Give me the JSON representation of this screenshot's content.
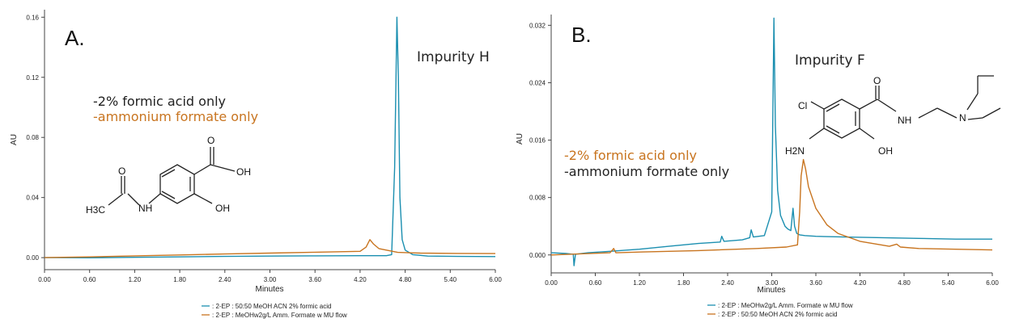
{
  "colors": {
    "teal": "#1b8fb0",
    "orange": "#c8741f",
    "axis": "#444444",
    "text": "#222222"
  },
  "chart_data": [
    {
      "type": "line",
      "panel_label": "A.",
      "compound_label": "Impurity H",
      "xlabel": "Minutes",
      "ylabel": "AU",
      "xlim": [
        0,
        6
      ],
      "ylim": [
        -0.008,
        0.165
      ],
      "xticks": [
        "0.00",
        "0.60",
        "1.20",
        "1.80",
        "2.40",
        "3.00",
        "3.60",
        "4.20",
        "4.80",
        "5.40",
        "6.00"
      ],
      "yticks": [
        "0.00",
        "0.04",
        "0.08",
        "0.12",
        "0.16"
      ],
      "conditions": [
        {
          "text": "-2% formic acid only",
          "color": "#222222"
        },
        {
          "text": "-ammonium formate only",
          "color": "#c8741f"
        }
      ],
      "structure_labels": {
        "methyl": "H3C",
        "nh": "NH",
        "oh_ring": "OH",
        "cooh": "OH",
        "o1": "O",
        "o2": "O"
      },
      "series": [
        {
          "name": ": 2-EP : 50:50 MeOH ACN 2% formic acid",
          "color": "#1b8fb0",
          "x": [
            0,
            0.6,
            1.2,
            1.8,
            2.4,
            3.0,
            3.6,
            4.2,
            4.55,
            4.62,
            4.66,
            4.69,
            4.71,
            4.73,
            4.76,
            4.8,
            4.9,
            5.1,
            5.5,
            6.0
          ],
          "y": [
            0,
            -0.0001,
            0.0002,
            0.0005,
            0.0008,
            0.001,
            0.0012,
            0.0013,
            0.0013,
            0.002,
            0.06,
            0.16,
            0.12,
            0.04,
            0.012,
            0.005,
            0.002,
            0.001,
            0.0008,
            0.0007
          ]
        },
        {
          "name": ": 2-EP : MeOHw2g/L Amm. Formate w MU flow",
          "color": "#c8741f",
          "x": [
            0,
            0.6,
            1.2,
            1.8,
            2.4,
            3.0,
            3.6,
            4.2,
            4.28,
            4.33,
            4.38,
            4.45,
            4.55,
            4.7,
            5.0,
            5.5,
            6.0
          ],
          "y": [
            0,
            0.0005,
            0.0012,
            0.0018,
            0.0024,
            0.003,
            0.0036,
            0.0042,
            0.007,
            0.012,
            0.009,
            0.006,
            0.005,
            0.0035,
            0.003,
            0.0028,
            0.0027
          ]
        }
      ]
    },
    {
      "type": "line",
      "panel_label": "B.",
      "compound_label": "Impurity F",
      "xlabel": "Minutes",
      "ylabel": "AU",
      "xlim": [
        0,
        6
      ],
      "ylim": [
        -0.0025,
        0.0335
      ],
      "xticks": [
        "0.00",
        "0.60",
        "1.20",
        "1.80",
        "2.40",
        "3.00",
        "3.60",
        "4.20",
        "4.80",
        "5.40",
        "6.00"
      ],
      "yticks": [
        "0.000",
        "0.008",
        "0.016",
        "0.024",
        "0.032"
      ],
      "conditions": [
        {
          "text": "-2% formic acid only",
          "color": "#c8741f"
        },
        {
          "text": "-ammonium formate only",
          "color": "#222222"
        }
      ],
      "structure_labels": {
        "cl": "Cl",
        "h2n": "H2N",
        "oh": "OH",
        "nh": "NH",
        "n": "N",
        "o": "O"
      },
      "series": [
        {
          "name": ": 2-EP : MeOHw2g/L Amm. Formate w MU flow",
          "color": "#1b8fb0",
          "x": [
            0,
            0.2,
            0.3,
            0.31,
            0.33,
            0.5,
            0.8,
            1.2,
            1.6,
            2.0,
            2.3,
            2.32,
            2.35,
            2.6,
            2.7,
            2.72,
            2.75,
            2.9,
            3.0,
            3.03,
            3.05,
            3.08,
            3.12,
            3.18,
            3.22,
            3.26,
            3.29,
            3.31,
            3.34,
            3.38,
            3.45,
            3.6,
            4.0,
            4.5,
            5.0,
            5.5,
            6.0
          ],
          "y": [
            0.0003,
            0.0002,
            0.0001,
            -0.0015,
            0.0001,
            0.0003,
            0.0005,
            0.0008,
            0.0012,
            0.0016,
            0.0018,
            0.0026,
            0.0019,
            0.0021,
            0.0024,
            0.0035,
            0.0025,
            0.0027,
            0.006,
            0.033,
            0.018,
            0.009,
            0.0055,
            0.004,
            0.0036,
            0.0034,
            0.0065,
            0.004,
            0.003,
            0.0028,
            0.0027,
            0.0026,
            0.0025,
            0.0024,
            0.0023,
            0.0022,
            0.0022
          ]
        },
        {
          "name": ": 2-EP : 50:50 MeOH ACN 2% formic acid",
          "color": "#c8741f",
          "x": [
            0,
            0.8,
            0.85,
            0.88,
            1.2,
            2.0,
            2.8,
            3.2,
            3.35,
            3.38,
            3.4,
            3.43,
            3.46,
            3.5,
            3.6,
            3.75,
            3.9,
            4.2,
            4.6,
            4.7,
            4.75,
            5.0,
            5.5,
            6.0
          ],
          "y": [
            0,
            0.0003,
            0.0009,
            0.0003,
            0.0004,
            0.0006,
            0.0009,
            0.0011,
            0.0014,
            0.006,
            0.011,
            0.0133,
            0.012,
            0.0095,
            0.0065,
            0.0042,
            0.003,
            0.0019,
            0.0012,
            0.0015,
            0.0011,
            0.0009,
            0.0008,
            0.0007
          ]
        }
      ]
    }
  ]
}
